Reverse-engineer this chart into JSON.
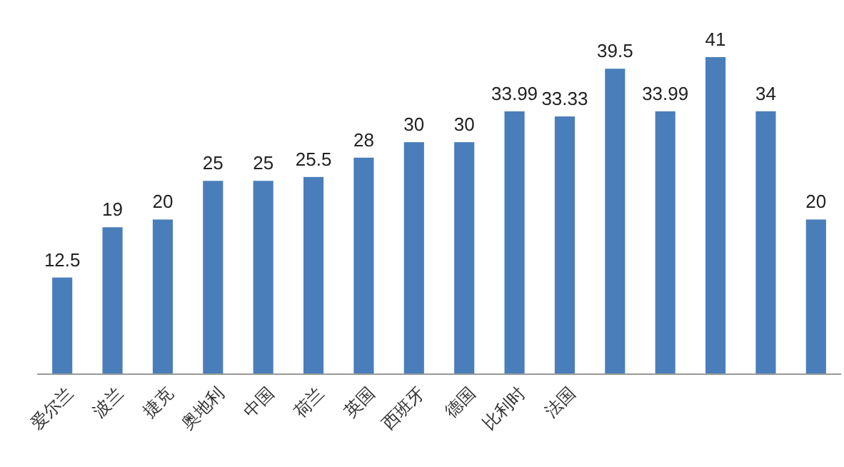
{
  "chart_data": {
    "type": "bar",
    "categories": [
      "爱尔兰",
      "波兰",
      "捷克",
      "奥地利",
      "中国",
      "荷兰",
      "英国",
      "西班牙",
      "德国",
      "比利时",
      "法国",
      null,
      null,
      null,
      null,
      null
    ],
    "values": [
      12.5,
      19,
      20,
      25,
      25,
      25.5,
      28,
      30,
      30,
      33.99,
      33.33,
      39.5,
      33.99,
      41,
      34,
      20
    ],
    "color": "#4a7ebb",
    "data_labels": true
  }
}
